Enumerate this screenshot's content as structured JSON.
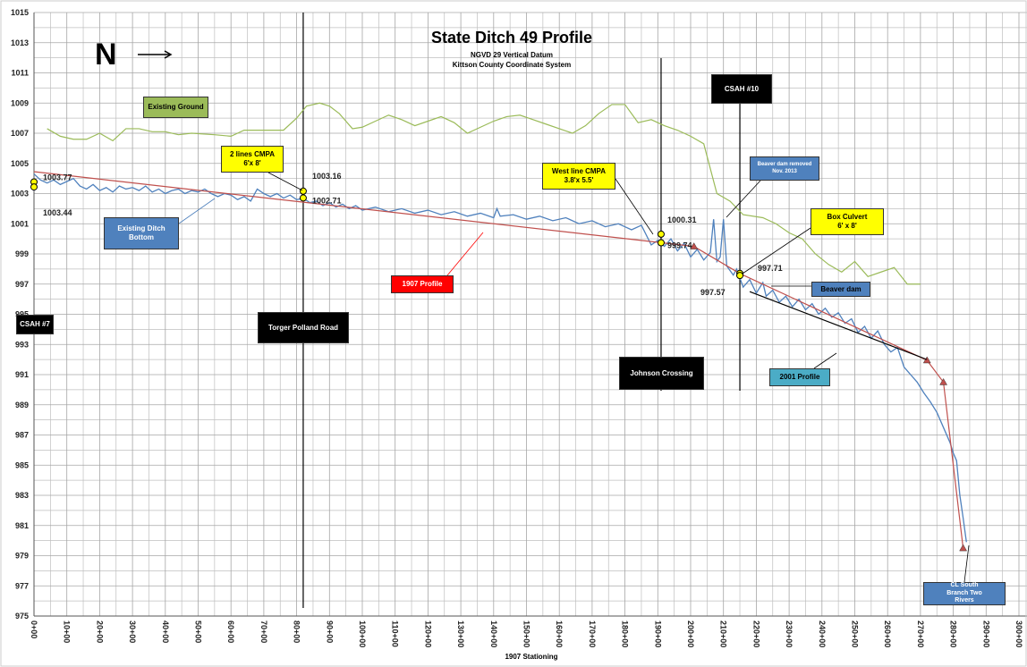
{
  "chart_data": {
    "type": "line",
    "title": "State Ditch 49 Profile",
    "subtitle": [
      "NGVD 29 Vertical Datum",
      "Kittson County Coordinate System"
    ],
    "north_arrow": "N",
    "xlabel": "1907 Stationing",
    "xlim": [
      0,
      300
    ],
    "ylim": [
      975,
      1015
    ],
    "xticks": [
      {
        "value": 0,
        "label": "0+00"
      },
      {
        "value": 10,
        "label": "10+00"
      },
      {
        "value": 20,
        "label": "20+00"
      },
      {
        "value": 30,
        "label": "30+00"
      },
      {
        "value": 40,
        "label": "40+00"
      },
      {
        "value": 50,
        "label": "50+00"
      },
      {
        "value": 60,
        "label": "60+00"
      },
      {
        "value": 70,
        "label": "70+00"
      },
      {
        "value": 80,
        "label": "80+00"
      },
      {
        "value": 90,
        "label": "90+00"
      },
      {
        "value": 100,
        "label": "100+00"
      },
      {
        "value": 110,
        "label": "110+00"
      },
      {
        "value": 120,
        "label": "120+00"
      },
      {
        "value": 130,
        "label": "130+00"
      },
      {
        "value": 140,
        "label": "140+00"
      },
      {
        "value": 150,
        "label": "150+00"
      },
      {
        "value": 160,
        "label": "160+00"
      },
      {
        "value": 170,
        "label": "170+00"
      },
      {
        "value": 180,
        "label": "180+00"
      },
      {
        "value": 190,
        "label": "190+00"
      },
      {
        "value": 200,
        "label": "200+00"
      },
      {
        "value": 210,
        "label": "210+00"
      },
      {
        "value": 220,
        "label": "220+00"
      },
      {
        "value": 230,
        "label": "230+00"
      },
      {
        "value": 240,
        "label": "240+00"
      },
      {
        "value": 250,
        "label": "250+00"
      },
      {
        "value": 260,
        "label": "260+00"
      },
      {
        "value": 270,
        "label": "270+00"
      },
      {
        "value": 280,
        "label": "280+00"
      },
      {
        "value": 290,
        "label": "290+00"
      },
      {
        "value": 300,
        "label": "300+00"
      }
    ],
    "yticks": [
      975,
      977,
      979,
      981,
      983,
      985,
      987,
      989,
      991,
      993,
      995,
      997,
      999,
      1001,
      1003,
      1005,
      1007,
      1009,
      1011,
      1013,
      1015
    ],
    "xgrid_minor": [
      5,
      15,
      25,
      35,
      45,
      55,
      65,
      75,
      85,
      95,
      105,
      115,
      125,
      135,
      145,
      155,
      165,
      175,
      185,
      195,
      205,
      215,
      225,
      235,
      245,
      255,
      265,
      275,
      285,
      295
    ],
    "ygrid_minor": [
      976,
      978,
      980,
      982,
      984,
      986,
      988,
      990,
      992,
      994,
      996,
      998,
      1000,
      1002,
      1004,
      1006,
      1008,
      1010,
      1012,
      1014
    ],
    "grid": true,
    "series": [
      {
        "name": "Existing Ground",
        "color": "#9bbb59",
        "x": [
          4,
          8,
          12,
          16,
          20,
          24,
          28,
          32,
          36,
          40,
          44,
          48,
          55,
          60,
          64,
          70,
          76,
          80,
          83,
          87,
          90,
          93,
          97,
          100,
          104,
          108,
          112,
          116,
          120,
          124,
          128,
          132,
          136,
          140,
          144,
          148,
          152,
          156,
          160,
          164,
          168,
          172,
          176,
          180,
          184,
          188,
          192,
          196,
          200,
          204,
          208,
          212,
          216,
          222,
          226,
          230,
          234,
          238,
          242,
          246,
          250,
          254,
          258,
          262,
          266,
          270
        ],
        "values": [
          1007.3,
          1006.8,
          1006.6,
          1006.6,
          1007.0,
          1006.5,
          1007.3,
          1007.3,
          1007.1,
          1007.1,
          1006.9,
          1007.0,
          1006.9,
          1006.8,
          1007.2,
          1007.2,
          1007.2,
          1008.0,
          1008.8,
          1009.0,
          1008.8,
          1008.3,
          1007.3,
          1007.4,
          1007.8,
          1008.2,
          1007.9,
          1007.5,
          1007.8,
          1008.1,
          1007.7,
          1007.0,
          1007.4,
          1007.8,
          1008.1,
          1008.2,
          1007.9,
          1007.6,
          1007.3,
          1007.0,
          1007.5,
          1008.3,
          1008.9,
          1008.9,
          1007.7,
          1007.9,
          1007.5,
          1007.2,
          1006.8,
          1006.3,
          1003.0,
          1002.5,
          1001.6,
          1001.4,
          1001.0,
          1000.4,
          1000.0,
          999.0,
          998.3,
          997.8,
          998.5,
          997.5,
          997.8,
          998.1,
          997.0,
          997.0
        ]
      },
      {
        "name": "Existing Ditch Bottom",
        "color": "#4f81bd",
        "x": [
          0,
          2,
          4,
          6,
          8,
          10,
          12,
          14,
          16,
          18,
          20,
          22,
          24,
          26,
          28,
          30,
          32,
          34,
          36,
          38,
          40,
          42,
          44,
          46,
          48,
          50,
          52,
          54,
          56,
          58,
          60,
          62,
          64,
          66,
          68,
          70,
          72,
          74,
          76,
          78,
          80,
          82,
          84,
          86,
          88,
          90,
          92,
          94,
          96,
          98,
          100,
          104,
          108,
          112,
          116,
          120,
          124,
          128,
          132,
          136,
          140,
          141,
          142,
          146,
          150,
          154,
          158,
          162,
          166,
          170,
          174,
          178,
          182,
          185,
          188,
          190,
          192,
          194,
          196,
          198,
          200,
          202,
          204,
          206,
          207,
          208,
          209,
          210,
          211,
          213,
          214,
          216,
          218,
          220,
          222,
          223,
          225,
          227,
          229,
          231,
          233,
          235,
          237,
          239,
          241,
          243,
          245,
          247,
          249,
          251,
          253,
          255,
          257,
          259,
          261,
          263,
          265,
          267,
          269,
          271,
          273,
          275,
          277,
          279,
          280,
          281,
          282,
          283,
          284
        ],
        "values": [
          1004.3,
          1003.9,
          1003.7,
          1003.9,
          1003.6,
          1003.8,
          1004.0,
          1003.5,
          1003.3,
          1003.6,
          1003.2,
          1003.4,
          1003.1,
          1003.5,
          1003.3,
          1003.4,
          1003.2,
          1003.5,
          1003.1,
          1003.3,
          1003.0,
          1003.2,
          1003.3,
          1003.0,
          1003.2,
          1003.1,
          1003.3,
          1003.0,
          1002.8,
          1003.0,
          1002.9,
          1002.6,
          1002.8,
          1002.5,
          1003.3,
          1003.0,
          1002.8,
          1003.0,
          1002.7,
          1002.9,
          1002.6,
          1002.7,
          1002.4,
          1002.5,
          1002.2,
          1002.4,
          1002.1,
          1002.3,
          1002.0,
          1002.2,
          1001.9,
          1002.1,
          1001.8,
          1002.0,
          1001.7,
          1001.9,
          1001.6,
          1001.8,
          1001.5,
          1001.7,
          1001.4,
          1002.0,
          1001.5,
          1001.6,
          1001.3,
          1001.5,
          1001.2,
          1001.4,
          1001.0,
          1001.2,
          1000.8,
          1001.0,
          1000.6,
          1000.9,
          999.6,
          999.9,
          999.5,
          1000.0,
          999.2,
          999.7,
          998.8,
          999.3,
          998.6,
          999.1,
          1001.3,
          998.5,
          998.8,
          1001.3,
          998.2,
          997.6,
          998.0,
          996.8,
          997.3,
          996.4,
          997.1,
          996.2,
          996.6,
          995.8,
          996.2,
          995.5,
          996.0,
          995.3,
          995.7,
          995.0,
          995.4,
          994.8,
          995.1,
          994.4,
          994.7,
          993.8,
          994.2,
          993.4,
          993.9,
          993.0,
          992.5,
          992.8,
          991.5,
          991.0,
          990.5,
          989.8,
          989.2,
          988.5,
          987.5,
          986.5,
          985.8,
          985.3,
          983.0,
          981.5,
          979.9
        ]
      },
      {
        "name": "1907 Profile",
        "color": "#c0504d",
        "x": [
          0,
          201,
          215,
          272,
          277,
          283
        ],
        "values": [
          1004.45,
          999.5,
          997.7,
          991.95,
          990.5,
          979.5
        ]
      },
      {
        "name": "2001 Profile",
        "color": "#000000",
        "x": [
          218,
          272
        ],
        "values": [
          996.5,
          992.0
        ]
      }
    ],
    "marked_points": {
      "color": "#ffff00",
      "x": [
        0,
        0,
        82,
        82,
        191,
        191,
        215,
        215
      ],
      "values": [
        1003.77,
        1003.44,
        1003.16,
        1002.71,
        1000.31,
        999.74,
        997.71,
        997.57
      ]
    },
    "crossings": [
      {
        "label": "CSAH #7",
        "x": 0
      },
      {
        "label": "Torger Polland Road",
        "x": 82
      },
      {
        "label": "Johnson Crossing",
        "x": 191
      },
      {
        "label": "CSAH #10",
        "x": 215
      }
    ],
    "annotations": [
      "2 lines CMPA 6'x 8'",
      "West line CMPA 3.8'x 5.5'",
      "Beaver dam removed Nov. 2013",
      "Box Culvert 6' x 8'",
      "Beaver dam",
      "CL South Branch Two Rivers"
    ]
  }
}
